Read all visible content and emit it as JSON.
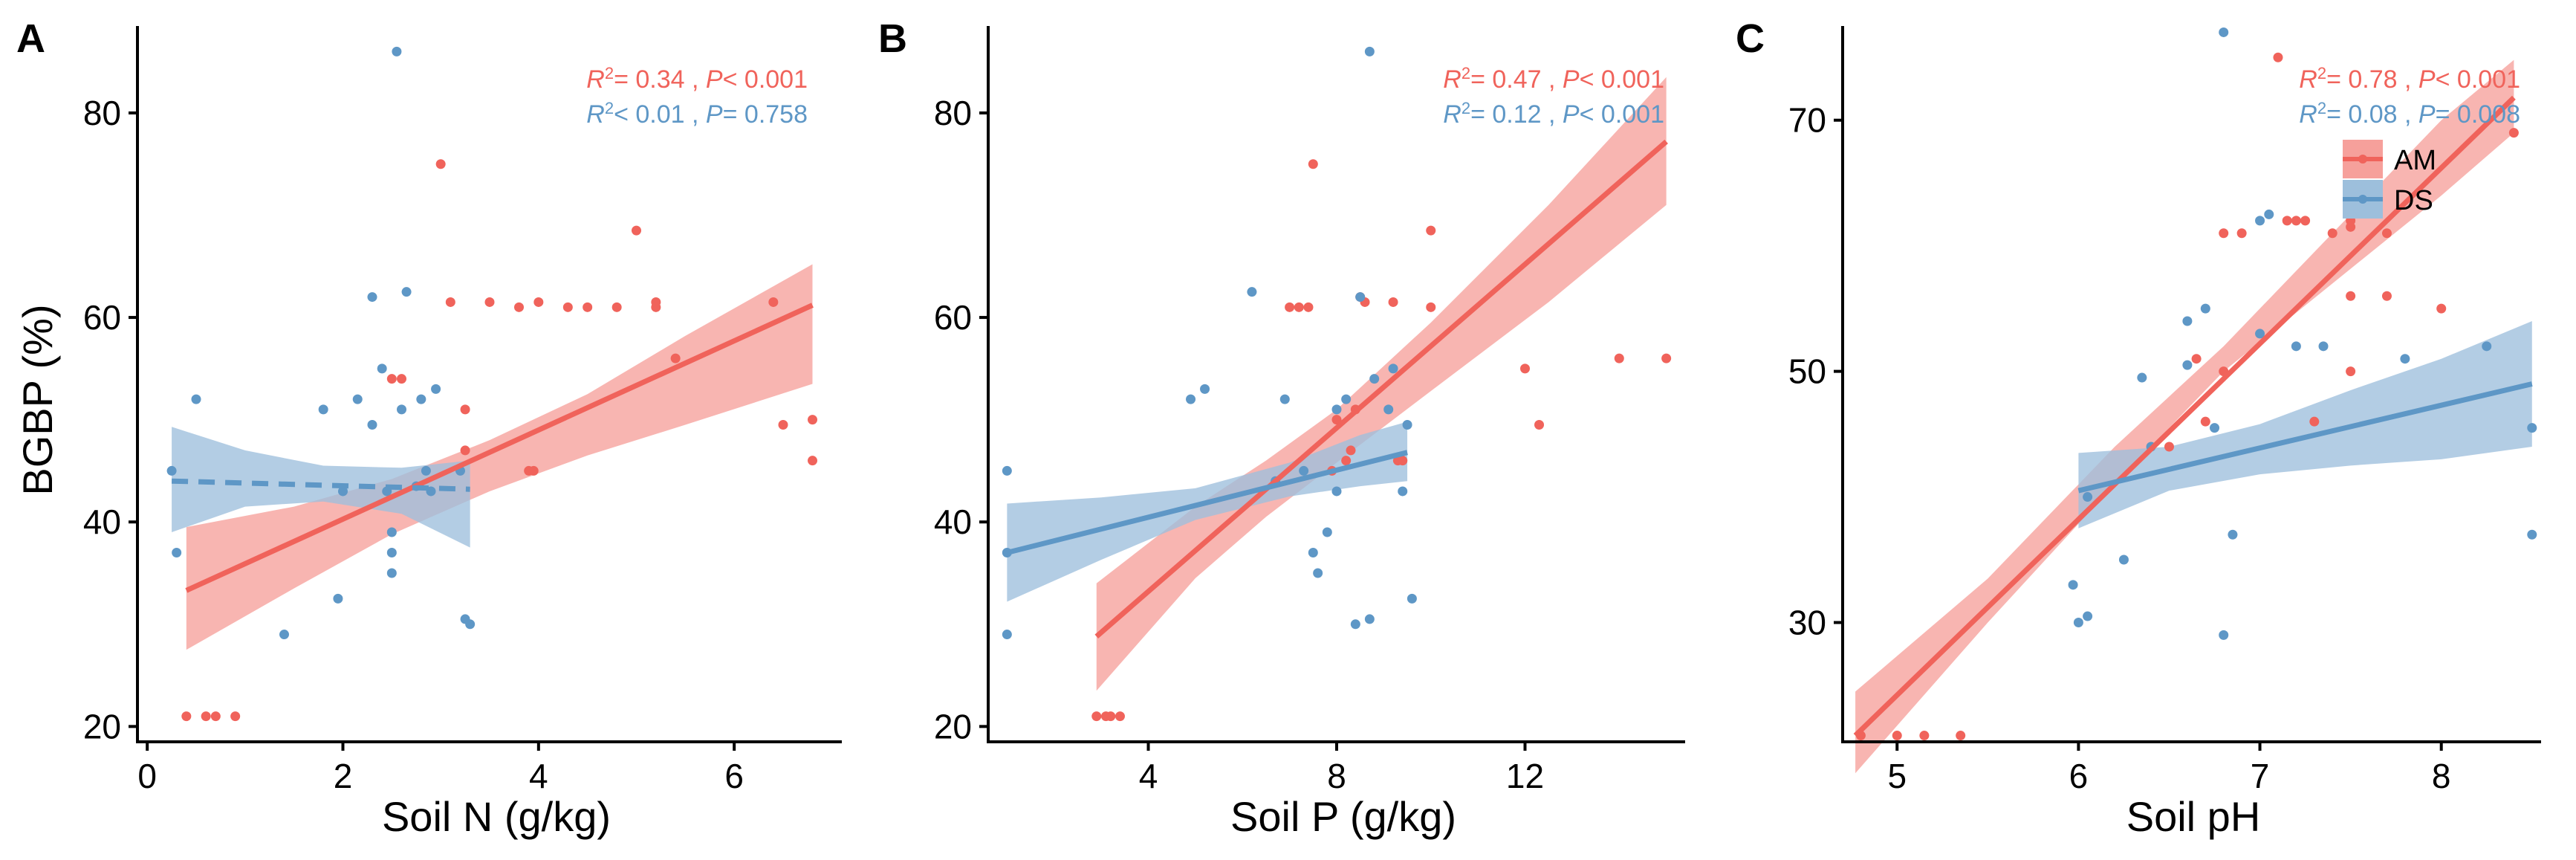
{
  "colors": {
    "AM": "#F0635B",
    "DS": "#5E97C6",
    "AM_band": "#F6A09B",
    "DS_band": "#9DBFDC"
  },
  "y_axis_label": "BGBP (%)",
  "legend": {
    "items": [
      "AM",
      "DS"
    ]
  },
  "chart_data": [
    {
      "type": "scatter",
      "letter": "A",
      "xlabel": "Soil N (g/kg)",
      "ylabel": "BGBP (%)",
      "xlim": [
        -0.1,
        7.1
      ],
      "ylim": [
        18.5,
        88.5
      ],
      "xticks": [
        0,
        2,
        4,
        6
      ],
      "xtick_labels": [
        "0",
        "2",
        "4",
        "6"
      ],
      "yticks": [
        20,
        40,
        60,
        80
      ],
      "ytick_labels": [
        "20",
        "40",
        "60",
        "80"
      ],
      "stats": [
        {
          "series": "AM",
          "label": "R2 = 0.34 , P < 0.001",
          "r2": "= 0.34 , ",
          "p": "< 0.001"
        },
        {
          "series": "DS",
          "label": "R2 < 0.01 , P = 0.758",
          "r2": "< 0.01 , ",
          "p": "= 0.758"
        }
      ],
      "series": [
        {
          "name": "AM",
          "points": [
            [
              0.4,
              21
            ],
            [
              0.6,
              21
            ],
            [
              0.7,
              21
            ],
            [
              0.9,
              21
            ],
            [
              2.5,
              54
            ],
            [
              2.6,
              54
            ],
            [
              3.0,
              75
            ],
            [
              3.1,
              61.5
            ],
            [
              3.25,
              47
            ],
            [
              3.25,
              51
            ],
            [
              3.5,
              61.5
            ],
            [
              3.8,
              61
            ],
            [
              4.0,
              61.5
            ],
            [
              4.3,
              61
            ],
            [
              4.5,
              61
            ],
            [
              4.8,
              61
            ],
            [
              5.2,
              61
            ],
            [
              5.2,
              61.5
            ],
            [
              5.0,
              68.5
            ],
            [
              5.4,
              56
            ],
            [
              6.4,
              61.5
            ],
            [
              6.5,
              49.5
            ],
            [
              6.8,
              50
            ],
            [
              6.8,
              46
            ],
            [
              3.9,
              45
            ],
            [
              3.95,
              45
            ]
          ],
          "fit": {
            "x": [
              0.4,
              6.8
            ],
            "y": [
              33.3,
              61.2
            ],
            "dashed": false,
            "band_x": [
              0.4,
              1.5,
              2.5,
              3.5,
              4.5,
              5.5,
              6.8
            ],
            "band_lo": [
              27.5,
              33.5,
              38.8,
              43.0,
              46.5,
              49.5,
              53.5
            ],
            "band_hi": [
              39.5,
              41.5,
              44.2,
              48.0,
              52.5,
              58.2,
              65.2
            ]
          }
        },
        {
          "name": "DS",
          "points": [
            [
              0.25,
              45
            ],
            [
              0.3,
              37
            ],
            [
              0.5,
              52
            ],
            [
              1.4,
              29
            ],
            [
              1.8,
              51
            ],
            [
              1.95,
              32.5
            ],
            [
              2.0,
              43
            ],
            [
              2.15,
              52
            ],
            [
              2.3,
              62
            ],
            [
              2.3,
              49.5
            ],
            [
              2.4,
              55
            ],
            [
              2.45,
              43
            ],
            [
              2.5,
              37
            ],
            [
              2.5,
              35
            ],
            [
              2.55,
              86
            ],
            [
              2.6,
              51
            ],
            [
              2.65,
              62.5
            ],
            [
              2.75,
              43.5
            ],
            [
              2.8,
              52
            ],
            [
              2.85,
              45
            ],
            [
              2.9,
              43
            ],
            [
              2.95,
              53
            ],
            [
              3.25,
              30.5
            ],
            [
              3.3,
              30
            ],
            [
              3.2,
              45
            ],
            [
              2.5,
              39
            ]
          ],
          "fit": {
            "x": [
              0.25,
              3.3
            ],
            "y": [
              44.0,
              43.2
            ],
            "dashed": true,
            "band_x": [
              0.25,
              1.0,
              1.8,
              2.6,
              3.3
            ],
            "band_lo": [
              39.0,
              41.5,
              42.0,
              40.8,
              37.5
            ],
            "band_hi": [
              49.3,
              47.0,
              45.5,
              45.3,
              46.0
            ]
          }
        }
      ]
    },
    {
      "type": "scatter",
      "letter": "B",
      "xlabel": "Soil P (g/kg)",
      "ylabel": "",
      "xlim": [
        0.6,
        15.4
      ],
      "ylim": [
        18.5,
        88.5
      ],
      "xticks": [
        4,
        8,
        12
      ],
      "xtick_labels": [
        "4",
        "8",
        "12"
      ],
      "yticks": [
        20,
        40,
        60,
        80
      ],
      "ytick_labels": [
        "20",
        "40",
        "60",
        "80"
      ],
      "stats": [
        {
          "series": "AM",
          "label": "R2 = 0.47 , P < 0.001",
          "r2": "= 0.47 , ",
          "p": "< 0.001"
        },
        {
          "series": "DS",
          "label": "R2 = 0.12 , P < 0.001",
          "r2": "= 0.12 , ",
          "p": "< 0.001"
        }
      ],
      "series": [
        {
          "name": "AM",
          "points": [
            [
              2.9,
              21
            ],
            [
              3.1,
              21
            ],
            [
              3.2,
              21
            ],
            [
              3.4,
              21
            ],
            [
              7.0,
              61
            ],
            [
              7.2,
              61
            ],
            [
              7.4,
              61
            ],
            [
              7.5,
              75
            ],
            [
              7.9,
              45
            ],
            [
              8.0,
              50
            ],
            [
              8.2,
              46
            ],
            [
              8.4,
              51
            ],
            [
              8.5,
              62
            ],
            [
              8.6,
              61.5
            ],
            [
              9.2,
              61.5
            ],
            [
              9.3,
              46
            ],
            [
              9.4,
              46
            ],
            [
              10.0,
              68.5
            ],
            [
              10.0,
              61
            ],
            [
              12.0,
              55
            ],
            [
              12.3,
              49.5
            ],
            [
              14.0,
              56
            ],
            [
              15.0,
              56
            ],
            [
              8.3,
              47
            ]
          ],
          "fit": {
            "x": [
              2.9,
              15.0
            ],
            "y": [
              28.8,
              77.2
            ],
            "dashed": false,
            "band_x": [
              2.9,
              5.0,
              6.5,
              8.0,
              10.0,
              12.5,
              15.0
            ],
            "band_lo": [
              23.5,
              34.5,
              40.5,
              45.8,
              52.8,
              61.5,
              71.0
            ],
            "band_hi": [
              34.0,
              41.5,
              46.0,
              51.0,
              59.5,
              71.0,
              83.5
            ]
          }
        },
        {
          "name": "DS",
          "points": [
            [
              1.0,
              45
            ],
            [
              1.0,
              37
            ],
            [
              1.0,
              29
            ],
            [
              4.9,
              52
            ],
            [
              5.2,
              53
            ],
            [
              6.2,
              62.5
            ],
            [
              6.7,
              44
            ],
            [
              6.9,
              52
            ],
            [
              7.3,
              45
            ],
            [
              7.5,
              37
            ],
            [
              7.6,
              35
            ],
            [
              7.8,
              39
            ],
            [
              8.0,
              51
            ],
            [
              8.2,
              52
            ],
            [
              8.5,
              62
            ],
            [
              8.7,
              86
            ],
            [
              8.8,
              54
            ],
            [
              8.4,
              30
            ],
            [
              8.7,
              30.5
            ],
            [
              9.2,
              55
            ],
            [
              9.4,
              43
            ],
            [
              9.5,
              49.5
            ],
            [
              9.6,
              32.5
            ],
            [
              9.1,
              51
            ],
            [
              8.0,
              43
            ]
          ],
          "fit": {
            "x": [
              1.0,
              9.5
            ],
            "y": [
              37.0,
              46.8
            ],
            "dashed": false,
            "band_x": [
              1.0,
              3.0,
              5.0,
              7.0,
              8.5,
              9.5
            ],
            "band_lo": [
              32.2,
              36.3,
              40.2,
              42.5,
              43.5,
              44.0
            ],
            "band_hi": [
              41.8,
              42.4,
              43.3,
              45.8,
              48.5,
              49.8
            ]
          }
        }
      ]
    },
    {
      "type": "scatter",
      "letter": "C",
      "xlabel": "Soil pH",
      "ylabel": "",
      "xlim": [
        4.7,
        8.55
      ],
      "ylim": [
        20.5,
        77.5
      ],
      "xticks": [
        5,
        6,
        7,
        8
      ],
      "xtick_labels": [
        "5",
        "6",
        "7",
        "8"
      ],
      "yticks": [
        30,
        50,
        70
      ],
      "ytick_labels": [
        "30",
        "50",
        "70"
      ],
      "stats": [
        {
          "series": "AM",
          "label": "R2 = 0.78 , P < 0.001",
          "r2": "= 0.78 , ",
          "p": "< 0.001"
        },
        {
          "series": "DS",
          "label": "R2 = 0.08 , P = 0.008",
          "r2": "= 0.08 , ",
          "p": "= 0.008"
        }
      ],
      "series": [
        {
          "name": "AM",
          "points": [
            [
              4.8,
              21
            ],
            [
              5.0,
              21
            ],
            [
              5.15,
              21
            ],
            [
              5.35,
              21
            ],
            [
              6.5,
              44
            ],
            [
              6.65,
              51
            ],
            [
              6.7,
              46
            ],
            [
              6.8,
              61
            ],
            [
              6.8,
              50
            ],
            [
              6.9,
              61
            ],
            [
              7.1,
              75
            ],
            [
              7.15,
              62
            ],
            [
              7.2,
              62
            ],
            [
              7.25,
              62
            ],
            [
              7.3,
              46
            ],
            [
              7.4,
              61
            ],
            [
              7.5,
              61.5
            ],
            [
              7.5,
              62
            ],
            [
              7.5,
              56
            ],
            [
              7.5,
              50
            ],
            [
              7.7,
              56
            ],
            [
              7.7,
              61
            ],
            [
              8.0,
              55
            ],
            [
              8.4,
              69
            ]
          ],
          "fit": {
            "x": [
              4.77,
              8.4
            ],
            "y": [
              21.0,
              71.8
            ],
            "dashed": false,
            "band_x": [
              4.77,
              5.5,
              6.2,
              6.8,
              7.4,
              8.0,
              8.4
            ],
            "band_lo": [
              18.0,
              30.0,
              41.0,
              50.0,
              57.0,
              64.0,
              69.0
            ],
            "band_hi": [
              24.5,
              33.5,
              44.0,
              52.0,
              61.0,
              70.0,
              74.8
            ]
          }
        },
        {
          "name": "DS",
          "points": [
            [
              5.97,
              33
            ],
            [
              6.0,
              30
            ],
            [
              6.05,
              30.5
            ],
            [
              6.05,
              40
            ],
            [
              6.25,
              35
            ],
            [
              6.35,
              49.5
            ],
            [
              6.4,
              44
            ],
            [
              6.6,
              54
            ],
            [
              6.6,
              50.5
            ],
            [
              6.7,
              55
            ],
            [
              6.75,
              45.5
            ],
            [
              6.8,
              29
            ],
            [
              6.85,
              37
            ],
            [
              6.8,
              77
            ],
            [
              7.0,
              62
            ],
            [
              7.05,
              62.5
            ],
            [
              7.0,
              53
            ],
            [
              7.2,
              52
            ],
            [
              7.35,
              52
            ],
            [
              7.8,
              51
            ],
            [
              8.25,
              52
            ],
            [
              8.5,
              45.5
            ],
            [
              8.5,
              37
            ]
          ],
          "fit": {
            "x": [
              6.0,
              8.5
            ],
            "y": [
              40.5,
              49.0
            ],
            "dashed": false,
            "band_x": [
              6.0,
              6.5,
              7.0,
              7.5,
              8.0,
              8.5
            ],
            "band_lo": [
              37.5,
              40.5,
              41.8,
              42.5,
              43.0,
              44.0
            ],
            "band_hi": [
              43.5,
              44.0,
              45.8,
              48.5,
              51.0,
              54.0
            ]
          }
        }
      ]
    }
  ]
}
